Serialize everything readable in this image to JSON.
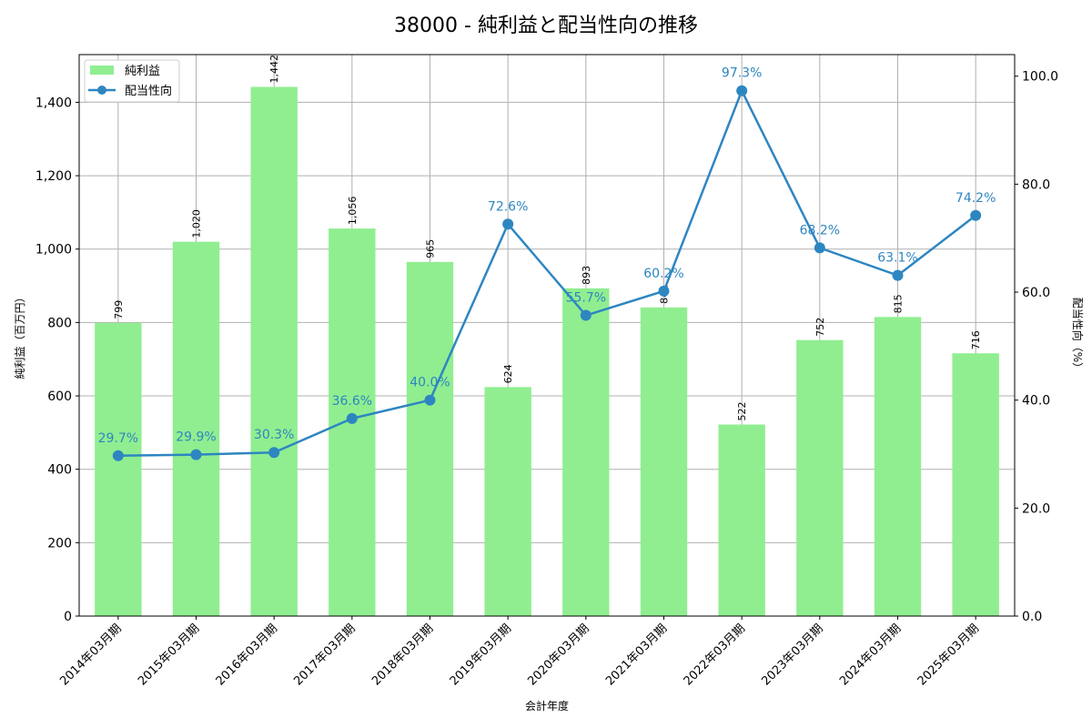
{
  "chart_data": {
    "type": "bar+line",
    "title": "38000 - 純利益と配当性向の推移",
    "xlabel": "会計年度",
    "ylabel": "純利益（百万円）",
    "y2label": "配当性向（%）",
    "categories": [
      "2014年03月期",
      "2015年03月期",
      "2016年03月期",
      "2017年03月期",
      "2018年03月期",
      "2019年03月期",
      "2020年03月期",
      "2021年03月期",
      "2022年03月期",
      "2023年03月期",
      "2024年03月期",
      "2025年03月期"
    ],
    "series": [
      {
        "name": "純利益",
        "type": "bar",
        "axis": "left",
        "color": "#90ee90",
        "values": [
          799,
          1020,
          1442,
          1056,
          965,
          624,
          893,
          841,
          522,
          752,
          815,
          716
        ],
        "labels": [
          "799",
          "1,020",
          "1,442",
          "1,056",
          "965",
          "624",
          "893",
          "841",
          "522",
          "752",
          "815",
          "716"
        ]
      },
      {
        "name": "配当性向",
        "type": "line",
        "axis": "right",
        "color": "#2e86c1",
        "values": [
          29.7,
          29.9,
          30.3,
          36.6,
          40.0,
          72.6,
          55.7,
          60.2,
          97.3,
          68.2,
          63.1,
          74.2
        ],
        "labels": [
          "29.7%",
          "29.9%",
          "30.3%",
          "36.6%",
          "40.0%",
          "72.6%",
          "55.7%",
          "60.2%",
          "97.3%",
          "68.2%",
          "63.1%",
          "74.2%"
        ]
      }
    ],
    "ylim": [
      0,
      1530
    ],
    "y2lim": [
      0,
      104
    ],
    "yticks": [
      0,
      200,
      400,
      600,
      800,
      1000,
      1200,
      1400
    ],
    "ytick_labels": [
      "0",
      "200",
      "400",
      "600",
      "800",
      "1,000",
      "1,200",
      "1,400"
    ],
    "y2ticks": [
      0,
      20,
      40,
      60,
      80,
      100
    ],
    "y2tick_labels": [
      "0.0",
      "20.0",
      "40.0",
      "60.0",
      "80.0",
      "100.0"
    ],
    "grid": true,
    "legend_position": "upper left"
  }
}
